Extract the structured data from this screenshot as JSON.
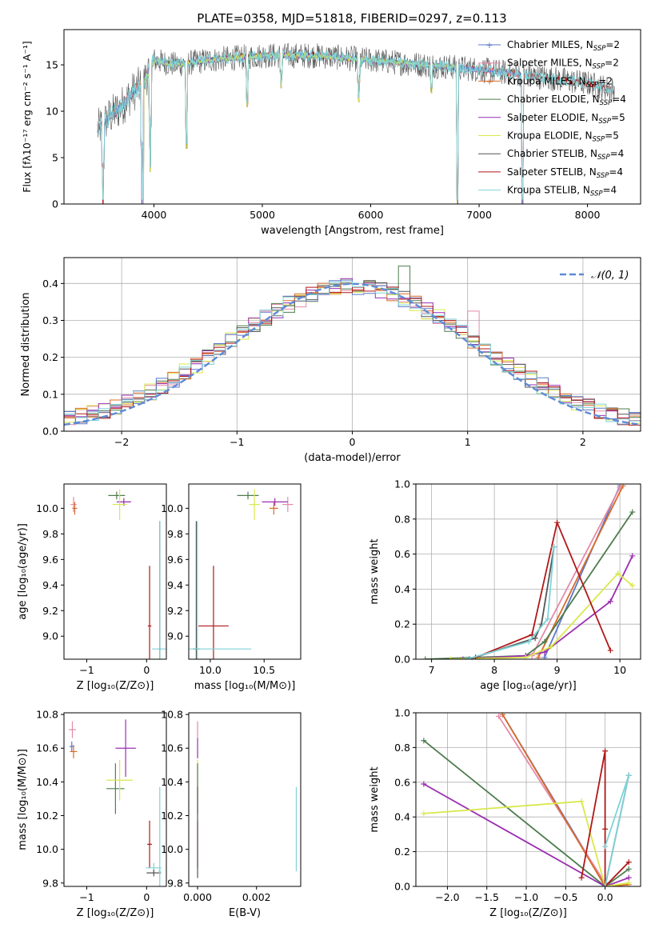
{
  "figure": {
    "title": "PLATE=0358, MJD=51818, FIBERID=0297, z=0.113"
  },
  "colors": {
    "chabrier_miles": "#5a78c9",
    "salpeter_miles": "#e58aa8",
    "kroupa_miles": "#d96b2a",
    "chabrier_elodie": "#4e7c4e",
    "salpeter_elodie": "#9a2fb0",
    "kroupa_elodie": "#d9e84c",
    "chabrier_stelib": "#555555",
    "salpeter_stelib": "#b01818",
    "kroupa_stelib": "#7fd3d8",
    "gaussian": "#5f8ad6"
  },
  "legend_spectrum": [
    {
      "text": "Chabrier MILES, N",
      "sub": "SSP",
      "tail": "=2",
      "color_key": "chabrier_miles"
    },
    {
      "text": "Salpeter MILES, N",
      "sub": "SSP",
      "tail": "=2",
      "color_key": "salpeter_miles"
    },
    {
      "text": "Kroupa MILES, N",
      "sub": "SSP",
      "tail": "=2",
      "color_key": "kroupa_miles"
    },
    {
      "text": "Chabrier ELODIE, N",
      "sub": "SSP",
      "tail": "=4",
      "color_key": "chabrier_elodie"
    },
    {
      "text": "Salpeter ELODIE, N",
      "sub": "SSP",
      "tail": "=5",
      "color_key": "salpeter_elodie"
    },
    {
      "text": "Kroupa ELODIE, N",
      "sub": "SSP",
      "tail": "=5",
      "color_key": "kroupa_elodie"
    },
    {
      "text": "Chabrier STELIB, N",
      "sub": "SSP",
      "tail": "=4",
      "color_key": "chabrier_stelib"
    },
    {
      "text": "Salpeter STELIB, N",
      "sub": "SSP",
      "tail": "=4",
      "color_key": "salpeter_stelib"
    },
    {
      "text": "Kroupa STELIB, N",
      "sub": "SSP",
      "tail": "=4",
      "color_key": "kroupa_stelib"
    }
  ],
  "legend_gauss": "𝒩(0, 1)",
  "chart_data": [
    {
      "id": "spectrum",
      "type": "line",
      "xlabel": "wavelength [Angstrom, rest frame]",
      "ylabel": "Flux [fλ10⁻¹⁷ erg cm⁻² s⁻¹ A⁻¹]",
      "xlim": [
        3170,
        8490
      ],
      "ylim": [
        0,
        18.8
      ],
      "xticks": [
        4000,
        5000,
        6000,
        7000,
        8000
      ],
      "yticks": [
        0,
        5,
        10,
        15
      ],
      "grid": false,
      "legend": "top-right",
      "continuum": [
        [
          3480,
          8.0
        ],
        [
          3600,
          9.5
        ],
        [
          3700,
          10.5
        ],
        [
          3800,
          12.0
        ],
        [
          3900,
          13.0
        ],
        [
          4000,
          15.5
        ],
        [
          4200,
          15.0
        ],
        [
          4500,
          15.5
        ],
        [
          5000,
          16.0
        ],
        [
          5500,
          16.0
        ],
        [
          6000,
          15.5
        ],
        [
          6500,
          15.0
        ],
        [
          7000,
          14.5
        ],
        [
          7500,
          13.8
        ],
        [
          8000,
          13.0
        ],
        [
          8250,
          12.3
        ]
      ],
      "dips": [
        [
          3530,
          0
        ],
        [
          3890,
          0
        ],
        [
          3965,
          3.5
        ],
        [
          4300,
          6
        ],
        [
          4860,
          10.5
        ],
        [
          5175,
          12.5
        ],
        [
          5890,
          11
        ],
        [
          6560,
          12
        ],
        [
          6800,
          0
        ],
        [
          7400,
          0
        ]
      ]
    },
    {
      "id": "residuals",
      "type": "histogram",
      "xlabel": "(data-model)/error",
      "ylabel": "Normed distribution",
      "xlim": [
        -2.5,
        2.5
      ],
      "ylim": [
        0,
        0.47
      ],
      "xticks": [
        -2,
        -1,
        0,
        1,
        2
      ],
      "yticks": [
        0.0,
        0.1,
        0.2,
        0.3,
        0.4
      ],
      "grid": true,
      "legend": "top-right",
      "bin_width": 0.1,
      "gaussian": {
        "mu": 0,
        "sigma": 1
      }
    },
    {
      "id": "age_vs_Z",
      "type": "errorbar",
      "xlabel": "Z [log₁₀(Z/Z⊙)]",
      "ylabel": "age  [log₁₀(age/yr)]",
      "xlim": [
        -1.38,
        0.33
      ],
      "ylim": [
        8.82,
        10.19
      ],
      "xticks": [
        -1,
        0
      ],
      "yticks": [
        9.0,
        9.2,
        9.4,
        9.6,
        9.8,
        10.0
      ],
      "grid": false,
      "points": [
        {
          "c": "salpeter_miles",
          "x": -1.22,
          "y": 10.03,
          "xerr": 0.05,
          "yerr": 0.06
        },
        {
          "c": "kroupa_miles",
          "x": -1.2,
          "y": 10.0,
          "xerr": 0.04,
          "yerr": 0.05
        },
        {
          "c": "chabrier_elodie",
          "x": -0.5,
          "y": 10.1,
          "xerr": 0.14,
          "yerr": 0.03
        },
        {
          "c": "salpeter_elodie",
          "x": -0.38,
          "y": 10.05,
          "xerr": 0.12,
          "yerr": 0.03
        },
        {
          "c": "kroupa_elodie",
          "x": -0.45,
          "y": 10.03,
          "xerr": 0.12,
          "yerr": 0.12
        },
        {
          "c": "salpeter_stelib",
          "x": 0.05,
          "y": 9.08,
          "xerr": 0.03,
          "yerr": 0.47
        },
        {
          "c": "chabrier_stelib",
          "x": 0.22,
          "y": 8.9,
          "xerr": 0.02,
          "yerr": 1.0
        },
        {
          "c": "kroupa_stelib",
          "x": 0.22,
          "y": 8.9,
          "xerr": 0.13,
          "yerr": 1.0
        }
      ]
    },
    {
      "id": "age_vs_mass",
      "type": "errorbar",
      "xlabel": "mass [log₁₀(M/M⊙)]",
      "xlim": [
        9.8,
        10.84
      ],
      "ylim": [
        8.82,
        10.19
      ],
      "xticks": [
        10.0,
        10.5
      ],
      "yticks": [
        9.0,
        9.2,
        9.4,
        9.6,
        9.8,
        10.0
      ],
      "grid": false,
      "points": [
        {
          "c": "salpeter_miles",
          "x": 10.72,
          "y": 10.03,
          "xerr": 0.05,
          "yerr": 0.06
        },
        {
          "c": "kroupa_miles",
          "x": 10.59,
          "y": 10.0,
          "xerr": 0.04,
          "yerr": 0.05
        },
        {
          "c": "chabrier_elodie",
          "x": 10.35,
          "y": 10.1,
          "xerr": 0.1,
          "yerr": 0.03
        },
        {
          "c": "salpeter_elodie",
          "x": 10.6,
          "y": 10.05,
          "xerr": 0.12,
          "yerr": 0.03
        },
        {
          "c": "kroupa_elodie",
          "x": 10.41,
          "y": 10.03,
          "xerr": 0.05,
          "yerr": 0.12
        },
        {
          "c": "salpeter_stelib",
          "x": 10.03,
          "y": 9.08,
          "xerr": 0.14,
          "yerr": 0.47
        },
        {
          "c": "chabrier_stelib",
          "x": 9.87,
          "y": 8.9,
          "xerr": 0.03,
          "yerr": 1.0
        },
        {
          "c": "kroupa_stelib",
          "x": 9.88,
          "y": 8.9,
          "xerr": 0.5,
          "yerr": 1.0
        }
      ]
    },
    {
      "id": "weight_vs_age",
      "type": "line",
      "xlabel": "age  [log₁₀(age/yr)]",
      "ylabel": "mass weight",
      "xlim": [
        6.75,
        10.33
      ],
      "ylim": [
        0,
        1.0
      ],
      "xticks": [
        7,
        8,
        9,
        10
      ],
      "yticks": [
        0.0,
        0.2,
        0.4,
        0.6,
        0.8,
        1.0
      ],
      "grid": true,
      "series": [
        {
          "c": "chabrier_miles",
          "x": [
            8.8,
            10.0
          ],
          "y": [
            0.01,
            0.99
          ]
        },
        {
          "c": "salpeter_miles",
          "x": [
            8.6,
            10.0
          ],
          "y": [
            0.02,
            0.98
          ]
        },
        {
          "c": "kroupa_miles",
          "x": [
            8.7,
            10.05
          ],
          "y": [
            0.01,
            0.99
          ]
        },
        {
          "c": "chabrier_elodie",
          "x": [
            6.9,
            8.5,
            8.8,
            10.2
          ],
          "y": [
            0.0,
            0.02,
            0.1,
            0.84
          ]
        },
        {
          "c": "salpeter_elodie",
          "x": [
            7.5,
            8.5,
            8.8,
            9.85,
            10.2
          ],
          "y": [
            0.0,
            0.02,
            0.04,
            0.33,
            0.59
          ]
        },
        {
          "c": "kroupa_elodie",
          "x": [
            7.3,
            8.5,
            8.9,
            9.97,
            10.2
          ],
          "y": [
            0.0,
            0.01,
            0.07,
            0.49,
            0.42
          ]
        },
        {
          "c": "chabrier_stelib",
          "x": [
            7.6,
            8.65,
            8.75,
            8.95
          ],
          "y": [
            0.0,
            0.12,
            0.2,
            0.64
          ]
        },
        {
          "c": "salpeter_stelib",
          "x": [
            7.7,
            8.6,
            9.0,
            9.85
          ],
          "y": [
            0.01,
            0.14,
            0.78,
            0.05
          ]
        },
        {
          "c": "kroupa_stelib",
          "x": [
            7.55,
            8.55,
            8.85,
            8.95
          ],
          "y": [
            0.0,
            0.1,
            0.23,
            0.64
          ]
        }
      ]
    },
    {
      "id": "mass_vs_Z",
      "type": "errorbar",
      "xlabel": "Z [log₁₀(Z/Z⊙)]",
      "ylabel": "mass [log₁₀(M/M⊙)]",
      "xlim": [
        -1.38,
        0.33
      ],
      "ylim": [
        9.78,
        10.81
      ],
      "xticks": [
        -1,
        0
      ],
      "yticks": [
        9.8,
        10.0,
        10.2,
        10.4,
        10.6,
        10.8
      ],
      "grid": false,
      "points": [
        {
          "c": "salpeter_miles",
          "x": -1.24,
          "y": 10.71,
          "xerr": 0.06,
          "yerr": 0.05
        },
        {
          "c": "chabrier_miles",
          "x": -1.25,
          "y": 10.61,
          "xerr": 0.04,
          "yerr": 0.03
        },
        {
          "c": "kroupa_miles",
          "x": -1.22,
          "y": 10.58,
          "xerr": 0.06,
          "yerr": 0.04
        },
        {
          "c": "chabrier_elodie",
          "x": -0.52,
          "y": 10.36,
          "xerr": 0.15,
          "yerr": 0.15
        },
        {
          "c": "salpeter_elodie",
          "x": -0.35,
          "y": 10.6,
          "xerr": 0.17,
          "yerr": 0.17
        },
        {
          "c": "kroupa_elodie",
          "x": -0.45,
          "y": 10.41,
          "xerr": 0.22,
          "yerr": 0.12
        },
        {
          "c": "salpeter_stelib",
          "x": 0.05,
          "y": 10.03,
          "xerr": 0.04,
          "yerr": 0.14
        },
        {
          "c": "kroupa_stelib",
          "x": 0.12,
          "y": 9.89,
          "xerr": 0.13,
          "yerr": 0.03
        },
        {
          "c": "chabrier_stelib",
          "x": 0.12,
          "y": 9.86,
          "xerr": 0.12,
          "yerr": 0.02
        },
        {
          "c": "kroupa_stelib",
          "x": 0.22,
          "y": 9.87,
          "xerr": 0.02,
          "yerr": 0.5
        }
      ]
    },
    {
      "id": "mass_vs_ebv",
      "type": "errorbar",
      "xlabel": "E(B-V)",
      "xlim": [
        -0.0003,
        0.0035
      ],
      "ylim": [
        9.78,
        10.81
      ],
      "xticks": [
        0.0,
        0.002
      ],
      "xtick_labels": [
        "0.000",
        "0.002"
      ],
      "yticks": [
        9.8,
        10.0,
        10.2,
        10.4,
        10.6,
        10.8
      ],
      "grid": false,
      "points": [
        {
          "c": "salpeter_miles",
          "x": 0.0,
          "y": 10.71,
          "xerr": 0,
          "yerr": 0.05
        },
        {
          "c": "salpeter_elodie",
          "x": 0.0,
          "y": 10.6,
          "xerr": 0,
          "yerr": 0.06
        },
        {
          "c": "kroupa_elodie",
          "x": 0.0,
          "y": 10.41,
          "xerr": 0,
          "yerr": 0.12
        },
        {
          "c": "chabrier_elodie",
          "x": 0.0,
          "y": 10.36,
          "xerr": 0,
          "yerr": 0.15
        },
        {
          "c": "salpeter_stelib",
          "x": 0.0,
          "y": 10.03,
          "xerr": 0,
          "yerr": 0.14
        },
        {
          "c": "chabrier_stelib",
          "x": 0.0,
          "y": 10.1,
          "xerr": 0,
          "yerr": 0.27
        },
        {
          "c": "kroupa_stelib",
          "x": 0.00335,
          "y": 10.12,
          "xerr": 0,
          "yerr": 0.25
        }
      ]
    },
    {
      "id": "weight_vs_Z",
      "type": "line",
      "xlabel": "Z [log₁₀(Z/Z⊙)]",
      "ylabel": "mass weight",
      "xlim": [
        -2.4,
        0.45
      ],
      "ylim": [
        0,
        1.0
      ],
      "xticks": [
        -2.0,
        -1.5,
        -1.0,
        -0.5,
        0.0
      ],
      "yticks": [
        0.0,
        0.2,
        0.4,
        0.6,
        0.8,
        1.0
      ],
      "grid": true,
      "series": [
        {
          "c": "chabrier_miles",
          "x": [
            -1.3,
            0.0
          ],
          "y": [
            0.99,
            0.01
          ]
        },
        {
          "c": "salpeter_miles",
          "x": [
            -1.35,
            0.0
          ],
          "y": [
            0.98,
            0.02
          ]
        },
        {
          "c": "kroupa_miles",
          "x": [
            -1.3,
            0.0,
            0.3
          ],
          "y": [
            0.99,
            0.0,
            0.01
          ]
        },
        {
          "c": "chabrier_elodie",
          "x": [
            -2.3,
            0.0,
            0.3
          ],
          "y": [
            0.84,
            0.0,
            0.1
          ]
        },
        {
          "c": "salpeter_elodie",
          "x": [
            -2.3,
            0.0,
            0.3
          ],
          "y": [
            0.59,
            0.0,
            0.05
          ]
        },
        {
          "c": "kroupa_elodie",
          "x": [
            -2.3,
            -0.3,
            0.0,
            0.3
          ],
          "y": [
            0.42,
            0.49,
            0.0,
            0.02
          ]
        },
        {
          "c": "chabrier_stelib",
          "x": [
            0.0,
            0.3
          ],
          "y": [
            0.0,
            0.64
          ]
        },
        {
          "c": "salpeter_stelib",
          "x": [
            -0.3,
            0.0,
            0.0,
            0.0,
            0.3
          ],
          "y": [
            0.05,
            0.78,
            0.33,
            0.0,
            0.14
          ]
        },
        {
          "c": "kroupa_stelib",
          "x": [
            0.0,
            0.3,
            0.0
          ],
          "y": [
            0.0,
            0.64,
            0.23
          ]
        }
      ]
    }
  ]
}
